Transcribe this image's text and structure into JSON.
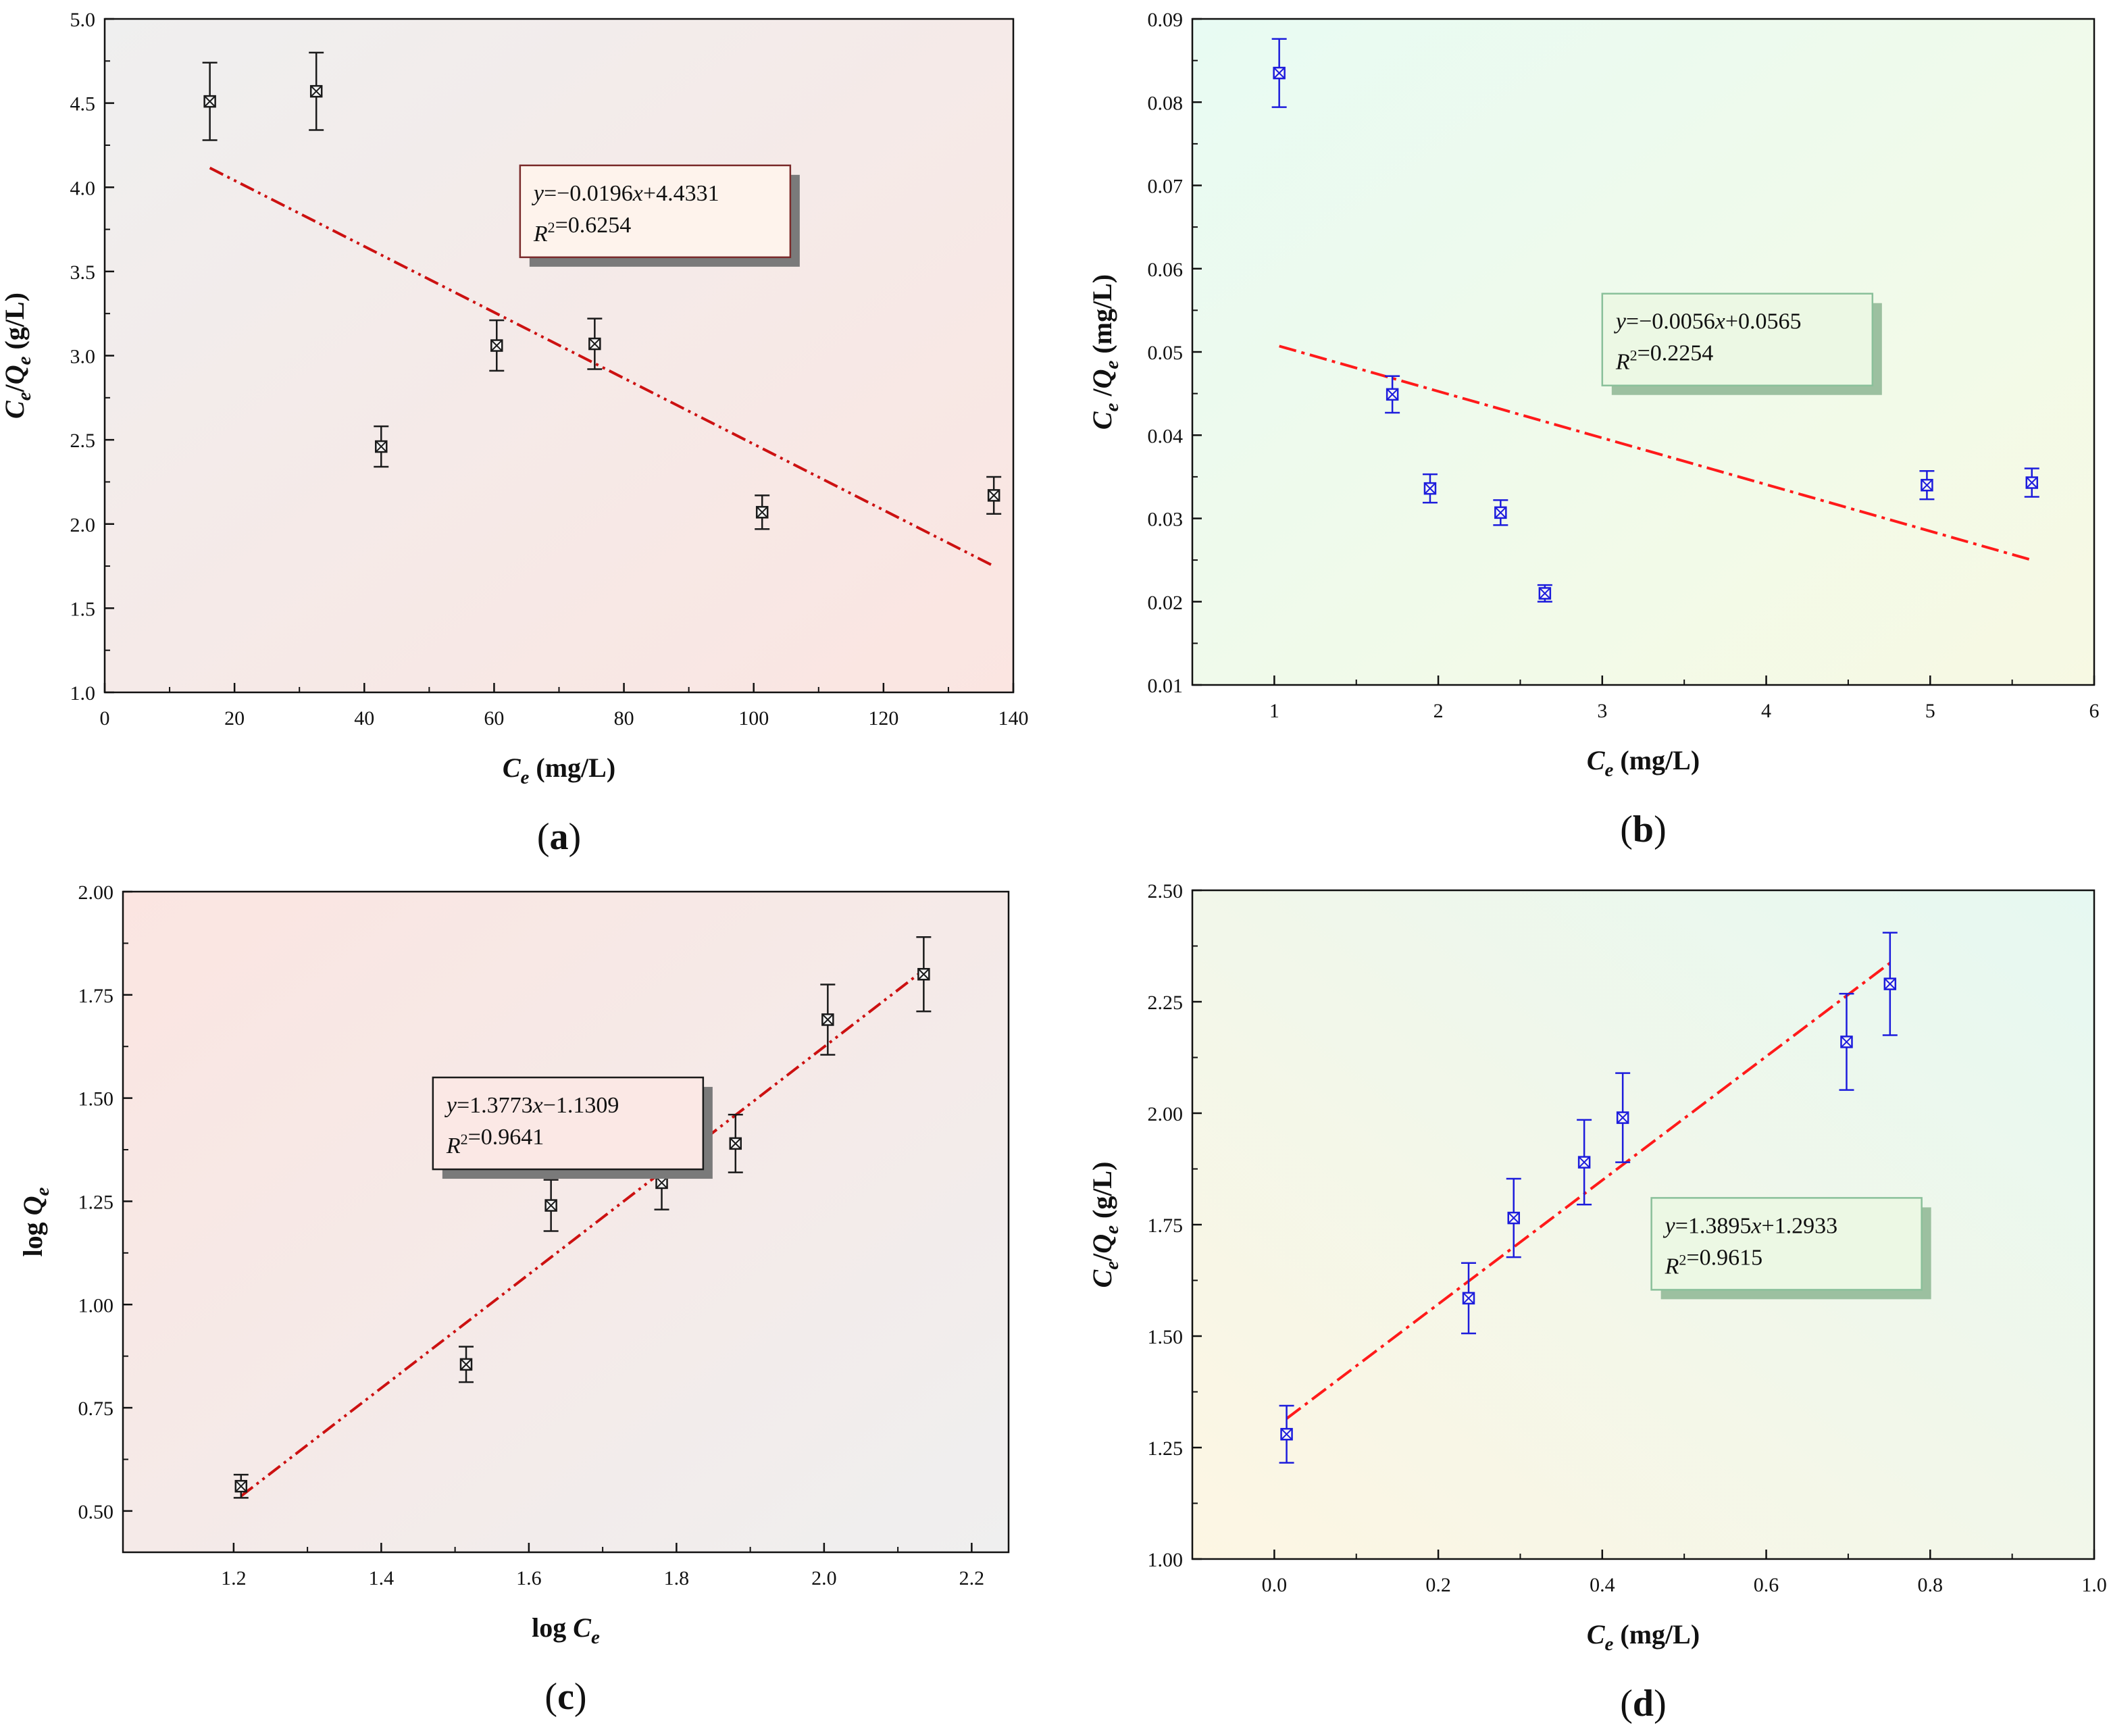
{
  "chart_data": [
    {
      "id": "a",
      "type": "scatter",
      "caption": "(a)",
      "xlabel": "C_e (mg/L)",
      "ylabel": "C_e/Q_e (g/L)",
      "xlim": [
        0,
        140
      ],
      "ylim": [
        1.0,
        5.0
      ],
      "xticks": [
        0,
        20,
        40,
        60,
        80,
        100,
        120,
        140
      ],
      "xtick_labels": [
        "0",
        "20",
        "40",
        "60",
        "80",
        "100",
        "120",
        "140"
      ],
      "yticks": [
        1.0,
        1.5,
        2.0,
        2.5,
        3.0,
        3.5,
        4.0,
        4.5,
        5.0
      ],
      "ytick_labels": [
        "1.0",
        "1.5",
        "2.0",
        "2.5",
        "3.0",
        "3.5",
        "4.0",
        "4.5",
        "5.0"
      ],
      "marker_color": "#1a1a1a",
      "fit_color": "#cc1111",
      "background": {
        "from": "#efefef",
        "to": "#fbe5e1",
        "direction": "tl-br"
      },
      "points": [
        {
          "x": 16.2,
          "y": 4.51,
          "err": 0.23
        },
        {
          "x": 32.6,
          "y": 4.57,
          "err": 0.23
        },
        {
          "x": 42.6,
          "y": 2.46,
          "err": 0.12
        },
        {
          "x": 60.4,
          "y": 3.06,
          "err": 0.15
        },
        {
          "x": 75.5,
          "y": 3.07,
          "err": 0.15
        },
        {
          "x": 101.3,
          "y": 2.07,
          "err": 0.1
        },
        {
          "x": 137.0,
          "y": 2.17,
          "err": 0.11
        }
      ],
      "fit": {
        "x1": 16.2,
        "y1": 4.115,
        "x2": 137.0,
        "y2": 1.75,
        "style": "dash-dot-dot"
      },
      "equation": {
        "line1": "y=−0.0196x+4.4331",
        "line2": "R²=0.6254",
        "x": 64,
        "y": 4.13,
        "bg": "#fef3ec",
        "border": "#7a2a2a",
        "shadow": "#7a7a7a"
      }
    },
    {
      "id": "b",
      "type": "scatter",
      "caption": "(b)",
      "xlabel": "C_e (mg/L)",
      "ylabel": "C_e /Q_e (mg/L)",
      "xlim": [
        0.5,
        6.0
      ],
      "ylim": [
        0.01,
        0.09
      ],
      "xticks": [
        1,
        2,
        3,
        4,
        5,
        6
      ],
      "xtick_labels": [
        "1",
        "2",
        "3",
        "4",
        "5",
        "6"
      ],
      "yticks": [
        0.01,
        0.02,
        0.03,
        0.04,
        0.05,
        0.06,
        0.07,
        0.08,
        0.09
      ],
      "ytick_labels": [
        "0.01",
        "0.02",
        "0.03",
        "0.04",
        "0.05",
        "0.06",
        "0.07",
        "0.08",
        "0.09"
      ],
      "marker_color": "#1c1cdc",
      "fit_color": "#ff1a1a",
      "background": {
        "from": "#e8fbf3",
        "to": "#f7f9e3",
        "direction": "tl-br"
      },
      "points": [
        {
          "x": 1.03,
          "y": 0.0835,
          "err": 0.0041
        },
        {
          "x": 1.72,
          "y": 0.0449,
          "err": 0.0022
        },
        {
          "x": 1.95,
          "y": 0.0336,
          "err": 0.0017
        },
        {
          "x": 2.38,
          "y": 0.0307,
          "err": 0.0015
        },
        {
          "x": 2.65,
          "y": 0.021,
          "err": 0.001
        },
        {
          "x": 4.98,
          "y": 0.034,
          "err": 0.0017
        },
        {
          "x": 5.62,
          "y": 0.0343,
          "err": 0.0017
        }
      ],
      "fit": {
        "x1": 1.03,
        "y1": 0.0507,
        "x2": 5.62,
        "y2": 0.025,
        "style": "dash-dot"
      },
      "equation": {
        "line1": "y=−0.0056x+0.0565",
        "line2": "R²=0.2254",
        "x": 3.0,
        "y": 0.057,
        "bg": "#ecf8e4",
        "border": "#8ac09a",
        "shadow": "#9cc0a0"
      }
    },
    {
      "id": "c",
      "type": "scatter",
      "caption": "(c)",
      "xlabel": "log C_e",
      "ylabel": "log Q_e",
      "xlim": [
        1.05,
        2.25
      ],
      "ylim": [
        0.4,
        2.0
      ],
      "xticks": [
        1.2,
        1.4,
        1.6,
        1.8,
        2.0,
        2.2
      ],
      "xtick_labels": [
        "1.2",
        "1.4",
        "1.6",
        "1.8",
        "2.0",
        "2.2"
      ],
      "yticks": [
        0.5,
        0.75,
        1.0,
        1.25,
        1.5,
        1.75,
        2.0
      ],
      "ytick_labels": [
        "0.50",
        "0.75",
        "1.00",
        "1.25",
        "1.50",
        "1.75",
        "2.00"
      ],
      "marker_color": "#1a1a1a",
      "fit_color": "#cc1111",
      "background": {
        "from": "#fbe5e1",
        "to": "#efefef",
        "direction": "tl-br"
      },
      "points": [
        {
          "x": 1.21,
          "y": 0.56,
          "err": 0.028
        },
        {
          "x": 1.515,
          "y": 0.855,
          "err": 0.043
        },
        {
          "x": 1.63,
          "y": 1.24,
          "err": 0.062
        },
        {
          "x": 1.78,
          "y": 1.295,
          "err": 0.065
        },
        {
          "x": 1.88,
          "y": 1.39,
          "err": 0.07
        },
        {
          "x": 2.005,
          "y": 1.69,
          "err": 0.085
        },
        {
          "x": 2.135,
          "y": 1.8,
          "err": 0.09
        }
      ],
      "fit": {
        "x1": 1.21,
        "y1": 0.536,
        "x2": 2.135,
        "y2": 1.81,
        "style": "dash-dot-dot"
      },
      "equation": {
        "line1": "y=1.3773x−1.1309",
        "line2": "R²=0.9641",
        "x": 1.47,
        "y": 1.55,
        "bg": "#fbe8e5",
        "border": "#1a1a1a",
        "shadow": "#7a7a7a"
      }
    },
    {
      "id": "d",
      "type": "scatter",
      "caption": "(d)",
      "xlabel": "C_e (mg/L)",
      "ylabel": "C_e/Q_e (g/L)",
      "xlim": [
        -0.1,
        1.0
      ],
      "ylim": [
        1.0,
        2.5
      ],
      "xticks": [
        0.0,
        0.2,
        0.4,
        0.6,
        0.8,
        1.0
      ],
      "xtick_labels": [
        "0.0",
        "0.2",
        "0.4",
        "0.6",
        "0.8",
        "1.0"
      ],
      "yticks": [
        1.0,
        1.25,
        1.5,
        1.75,
        2.0,
        2.25,
        2.5
      ],
      "ytick_labels": [
        "1.00",
        "1.25",
        "1.50",
        "1.75",
        "2.00",
        "2.25",
        "2.50"
      ],
      "marker_color": "#1c1cdc",
      "fit_color": "#ff1a1a",
      "background": {
        "from": "#fdf6e3",
        "to": "#e6f8f1",
        "direction": "bl-tr"
      },
      "points": [
        {
          "x": 0.015,
          "y": 1.28,
          "err": 0.064
        },
        {
          "x": 0.237,
          "y": 1.585,
          "err": 0.079
        },
        {
          "x": 0.292,
          "y": 1.765,
          "err": 0.088
        },
        {
          "x": 0.378,
          "y": 1.89,
          "err": 0.095
        },
        {
          "x": 0.425,
          "y": 1.99,
          "err": 0.1
        },
        {
          "x": 0.698,
          "y": 2.16,
          "err": 0.108
        },
        {
          "x": 0.751,
          "y": 2.29,
          "err": 0.115
        }
      ],
      "fit": {
        "x1": 0.015,
        "y1": 1.315,
        "x2": 0.751,
        "y2": 2.337,
        "style": "dash-dot"
      },
      "equation": {
        "line1": "y=1.3895x+1.2933",
        "line2": "R²=0.9615",
        "x": 0.46,
        "y": 1.81,
        "bg": "#ecf8e4",
        "border": "#8ac09a",
        "shadow": "#9cc0a0"
      }
    }
  ]
}
